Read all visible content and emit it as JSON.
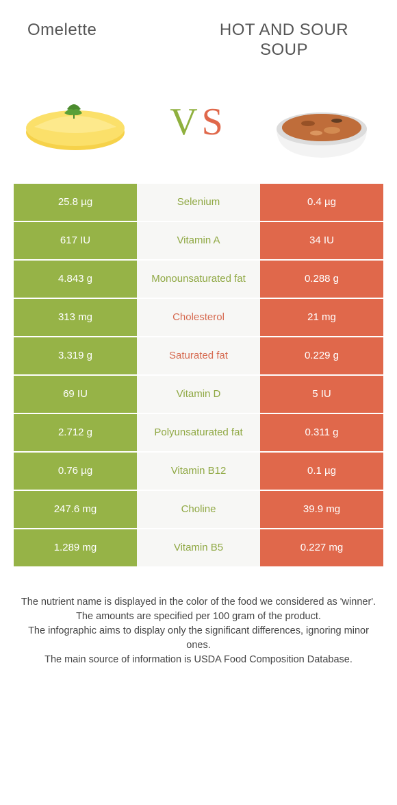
{
  "header": {
    "left_title": "Omelette",
    "right_title": "HOT AND SOUR SOUP"
  },
  "vs": {
    "v": "V",
    "s": "S"
  },
  "colors": {
    "left_bg": "#96b347",
    "right_bg": "#e0684b",
    "mid_bg": "#f7f7f5",
    "left_winner_text": "#8fa843",
    "right_winner_text": "#d66a50"
  },
  "rows": [
    {
      "left": "25.8 µg",
      "label": "Selenium",
      "right": "0.4 µg",
      "winner": "left"
    },
    {
      "left": "617 IU",
      "label": "Vitamin A",
      "right": "34 IU",
      "winner": "left"
    },
    {
      "left": "4.843 g",
      "label": "Monounsaturated fat",
      "right": "0.288 g",
      "winner": "left"
    },
    {
      "left": "313 mg",
      "label": "Cholesterol",
      "right": "21 mg",
      "winner": "right"
    },
    {
      "left": "3.319 g",
      "label": "Saturated fat",
      "right": "0.229 g",
      "winner": "right"
    },
    {
      "left": "69 IU",
      "label": "Vitamin D",
      "right": "5 IU",
      "winner": "left"
    },
    {
      "left": "2.712 g",
      "label": "Polyunsaturated fat",
      "right": "0.311 g",
      "winner": "left"
    },
    {
      "left": "0.76 µg",
      "label": "Vitamin B12",
      "right": "0.1 µg",
      "winner": "left"
    },
    {
      "left": "247.6 mg",
      "label": "Choline",
      "right": "39.9 mg",
      "winner": "left"
    },
    {
      "left": "1.289 mg",
      "label": "Vitamin B5",
      "right": "0.227 mg",
      "winner": "left"
    }
  ],
  "footer": {
    "line1": "The nutrient name is displayed in the color of the food we considered as 'winner'.",
    "line2": "The amounts are specified per 100 gram of the product.",
    "line3": "The infographic aims to display only the significant differences, ignoring minor ones.",
    "line4": "The main source of information is USDA Food Composition Database."
  }
}
